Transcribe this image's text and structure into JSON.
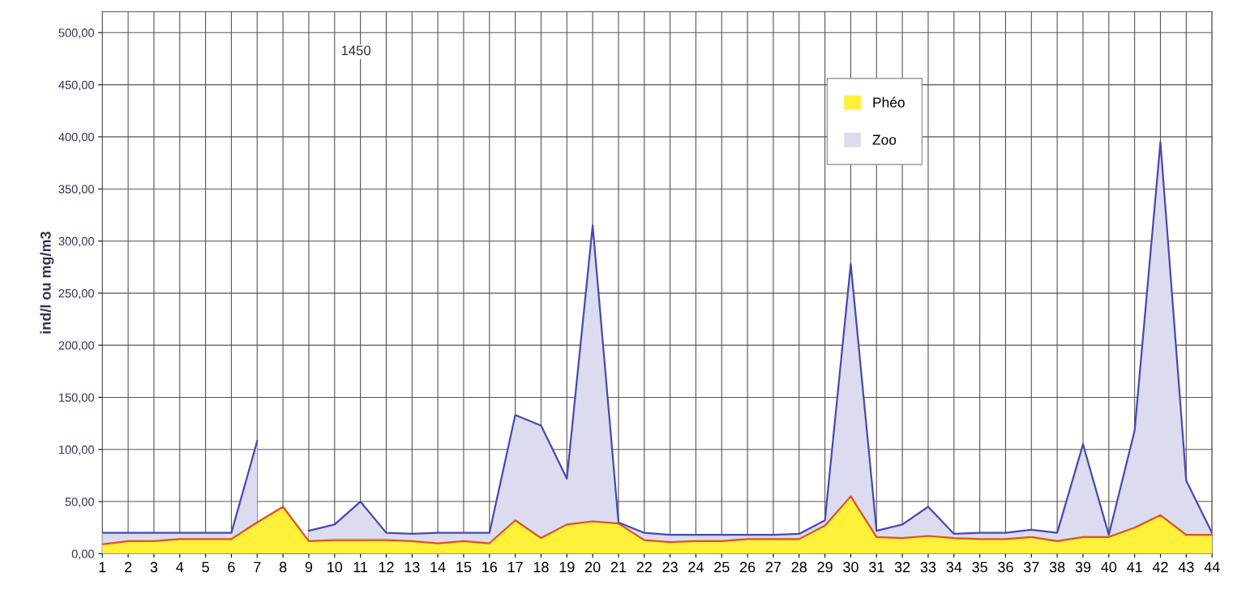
{
  "chart_data": {
    "type": "area",
    "ylabel": "ind/l ou mg/m3",
    "categories": [
      "1",
      "2",
      "3",
      "4",
      "5",
      "6",
      "7",
      "8",
      "9",
      "10",
      "11",
      "12",
      "13",
      "14",
      "15",
      "16",
      "17",
      "18",
      "19",
      "20",
      "21",
      "22",
      "23",
      "24",
      "25",
      "26",
      "27",
      "28",
      "29",
      "30",
      "31",
      "32",
      "33",
      "34",
      "35",
      "36",
      "37",
      "38",
      "39",
      "40",
      "41",
      "42",
      "43",
      "44"
    ],
    "series": [
      {
        "name": "Phéo",
        "color": "#fff03a",
        "values": [
          9,
          12,
          12,
          14,
          14,
          14,
          30,
          45,
          12,
          13,
          13,
          13,
          12,
          10,
          12,
          10,
          32,
          15,
          28,
          31,
          29,
          13,
          11,
          12,
          12,
          14,
          14,
          14,
          27,
          55,
          16,
          15,
          17,
          15,
          14,
          14,
          16,
          12,
          16,
          16,
          25,
          37,
          18,
          18
        ]
      },
      {
        "name": "Zoo",
        "color": "#dcdcf0",
        "values": [
          20,
          20,
          20,
          20,
          20,
          20,
          108,
          null,
          22,
          28,
          50,
          20,
          19,
          20,
          20,
          20,
          133,
          123,
          72,
          315,
          30,
          20,
          18,
          18,
          18,
          18,
          18,
          19,
          32,
          278,
          22,
          28,
          45,
          19,
          20,
          20,
          23,
          20,
          105,
          18,
          118,
          395,
          70,
          20
        ]
      }
    ],
    "ylim": [
      0,
      520
    ],
    "yticks": [
      {
        "value": 0,
        "label": "0,00"
      },
      {
        "value": 50,
        "label": "50,00"
      },
      {
        "value": 100,
        "label": "100,00"
      },
      {
        "value": 150,
        "label": "150,00"
      },
      {
        "value": 200,
        "label": "200,00"
      },
      {
        "value": 250,
        "label": "250,00"
      },
      {
        "value": 300,
        "label": "300,00"
      },
      {
        "value": 350,
        "label": "350,00"
      },
      {
        "value": 400,
        "label": "400,00"
      },
      {
        "value": 450,
        "label": "450,00"
      },
      {
        "value": 500,
        "label": "500,00"
      }
    ],
    "annotations": [
      "1450"
    ],
    "grid": true,
    "legend": "top right"
  }
}
